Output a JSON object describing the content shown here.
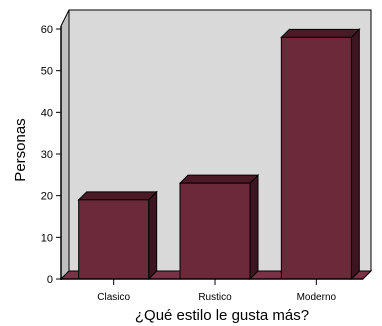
{
  "chart_data": {
    "type": "bar",
    "categories": [
      "Clasico",
      "Rustico",
      "Moderno"
    ],
    "values": [
      19,
      23,
      58
    ],
    "xlabel": "¿Qué estilo le gusta más?",
    "ylabel": "Personas",
    "ylim": [
      0,
      60
    ],
    "yticks": [
      0,
      10,
      20,
      30,
      40,
      50,
      60
    ],
    "grid": false,
    "legend": "none",
    "colors": {
      "plot_background": "#d9d9d9",
      "bar_front": "#6b2a3a",
      "bar_top": "#4a1a26",
      "bar_side": "#3d1520",
      "floor": "#7a3346",
      "frame": "#000000"
    }
  }
}
